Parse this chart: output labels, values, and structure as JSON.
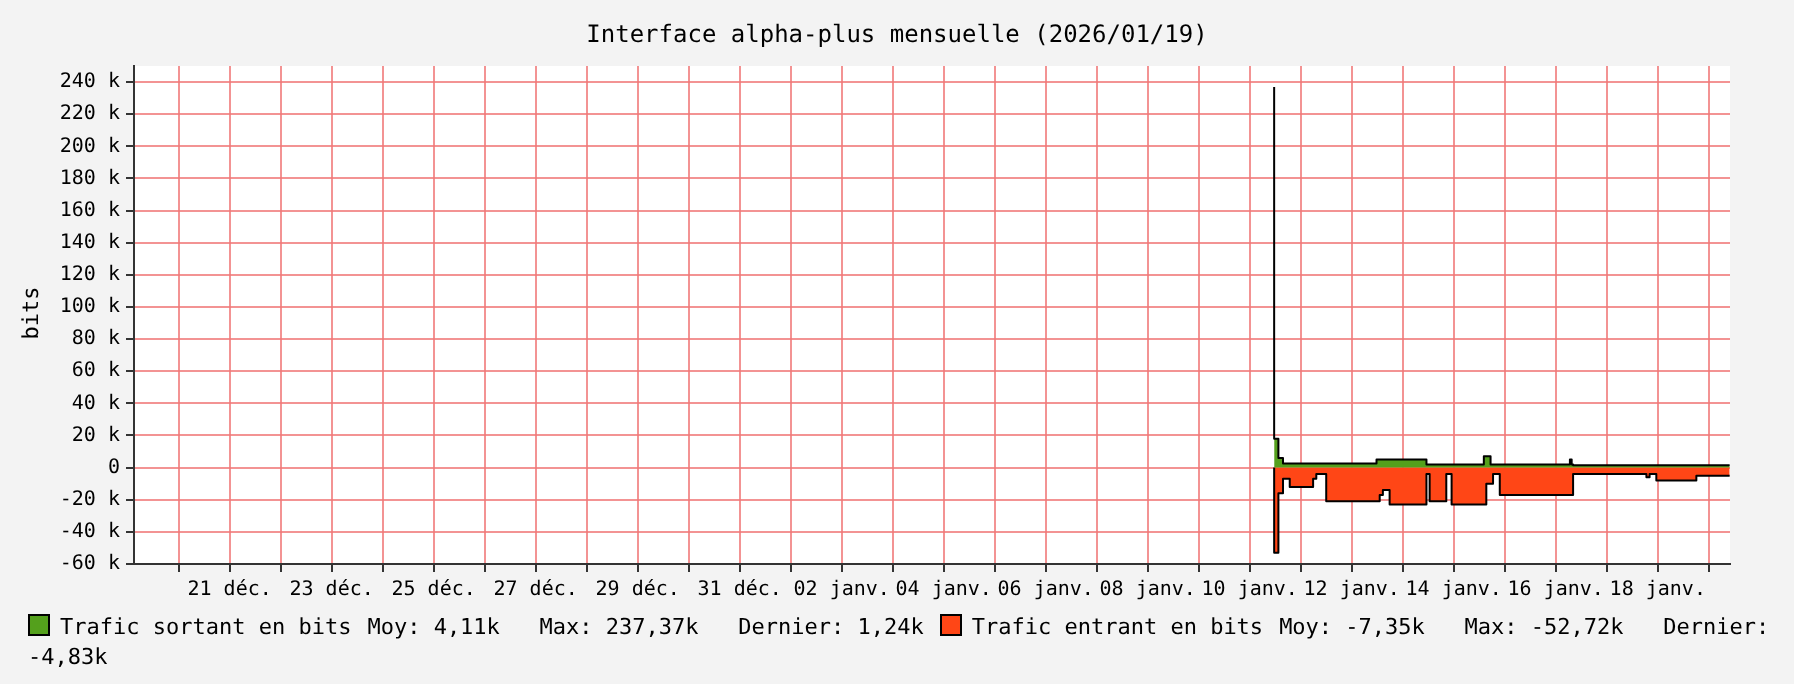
{
  "chart_data": {
    "type": "area",
    "title": "Interface alpha-plus mensuelle (2026/01/19)",
    "ylabel": "bits",
    "x": [
      "2026-01-10T11:30",
      "2026-01-10T13:30",
      "2026-01-10T15:40",
      "2026-01-10T18:50",
      "2026-01-11T05:50",
      "2026-01-11T07:20",
      "2026-01-11T12:00",
      "2026-01-12T11:40",
      "2026-01-12T13:10",
      "2026-01-12T14:40",
      "2026-01-12T17:50",
      "2026-01-13T11:10",
      "2026-01-13T12:40",
      "2026-01-13T20:30",
      "2026-01-13T23:00",
      "2026-01-14T14:10",
      "2026-01-14T15:20",
      "2026-01-14T17:20",
      "2026-01-14T18:30",
      "2026-01-14T21:40",
      "2026-01-16T06:40",
      "2026-01-16T07:30",
      "2026-01-16T08:10",
      "2026-01-16T08:50",
      "2026-01-17T18:40",
      "2026-01-17T20:10",
      "2026-01-17T23:20",
      "2026-01-18T18:10",
      "2026-01-18T22:50",
      "2026-01-19T09:50"
    ],
    "series": [
      {
        "name": "Trafic sortant en bits",
        "color": "#54a01c",
        "values": [
          237000,
          18000,
          6000,
          2500,
          2500,
          2500,
          2500,
          2500,
          5000,
          5000,
          5000,
          5000,
          2000,
          2000,
          2000,
          2000,
          7000,
          7000,
          2000,
          2000,
          2000,
          5000,
          2000,
          1500,
          1500,
          1500,
          1500,
          1500,
          1500,
          1500
        ]
      },
      {
        "name": "Trafic entrant en bits",
        "color": "#ff4616",
        "values": [
          0,
          -53000,
          -16000,
          -7000,
          -12000,
          -7000,
          -4000,
          -21000,
          -21000,
          -17000,
          -14000,
          -23000,
          -4000,
          -21000,
          -4000,
          -23000,
          -23000,
          -10000,
          -10000,
          -4000,
          -17000,
          -17000,
          -17000,
          -4000,
          -4000,
          -6000,
          -4000,
          -8000,
          -5000,
          -5000
        ]
      }
    ],
    "annotations": [
      "Moy: 4,11k   Max: 237,37k   Dernier: 1,24k",
      "Moy: -7,35k   Max: -52,72k   Dernier: -4,83k"
    ],
    "xlim": [
      "2025-12-19T03:00",
      "2026-01-19T10:00"
    ],
    "xticks": [
      {
        "value": "2025-12-20",
        "label": null
      },
      {
        "value": "2025-12-21",
        "label": "21 déc."
      },
      {
        "value": "2025-12-22",
        "label": null
      },
      {
        "value": "2025-12-23",
        "label": "23 déc."
      },
      {
        "value": "2025-12-24",
        "label": null
      },
      {
        "value": "2025-12-25",
        "label": "25 déc."
      },
      {
        "value": "2025-12-26",
        "label": null
      },
      {
        "value": "2025-12-27",
        "label": "27 déc."
      },
      {
        "value": "2025-12-28",
        "label": null
      },
      {
        "value": "2025-12-29",
        "label": "29 déc."
      },
      {
        "value": "2025-12-30",
        "label": null
      },
      {
        "value": "2025-12-31",
        "label": "31 déc."
      },
      {
        "value": "2026-01-01",
        "label": null
      },
      {
        "value": "2026-01-02",
        "label": "02 janv."
      },
      {
        "value": "2026-01-03",
        "label": null
      },
      {
        "value": "2026-01-04",
        "label": "04 janv."
      },
      {
        "value": "2026-01-05",
        "label": null
      },
      {
        "value": "2026-01-06",
        "label": "06 janv."
      },
      {
        "value": "2026-01-07",
        "label": null
      },
      {
        "value": "2026-01-08",
        "label": "08 janv."
      },
      {
        "value": "2026-01-09",
        "label": null
      },
      {
        "value": "2026-01-10",
        "label": "10 janv."
      },
      {
        "value": "2026-01-11",
        "label": null
      },
      {
        "value": "2026-01-12",
        "label": "12 janv."
      },
      {
        "value": "2026-01-13",
        "label": null
      },
      {
        "value": "2026-01-14",
        "label": "14 janv."
      },
      {
        "value": "2026-01-15",
        "label": null
      },
      {
        "value": "2026-01-16",
        "label": "16 janv."
      },
      {
        "value": "2026-01-17",
        "label": null
      },
      {
        "value": "2026-01-18",
        "label": "18 janv."
      },
      {
        "value": "2026-01-19",
        "label": null
      }
    ],
    "ylim": [
      -60000,
      250000
    ],
    "yticks": [
      {
        "value": -60000,
        "label": "-60 k"
      },
      {
        "value": -40000,
        "label": "-40 k"
      },
      {
        "value": -20000,
        "label": "-20 k"
      },
      0,
      {
        "value": 20000,
        "label": "20 k"
      },
      {
        "value": 40000,
        "label": "40 k"
      },
      {
        "value": 60000,
        "label": "60 k"
      },
      {
        "value": 80000,
        "label": "80 k"
      },
      {
        "value": 100000,
        "label": "100 k"
      },
      {
        "value": 120000,
        "label": "120 k"
      },
      {
        "value": 140000,
        "label": "140 k"
      },
      {
        "value": 160000,
        "label": "160 k"
      },
      {
        "value": 180000,
        "label": "180 k"
      },
      {
        "value": 200000,
        "label": "200 k"
      },
      {
        "value": 220000,
        "label": "220 k"
      },
      {
        "value": 240000,
        "label": "240 k"
      }
    ],
    "grid": true,
    "legend": "bottom"
  }
}
